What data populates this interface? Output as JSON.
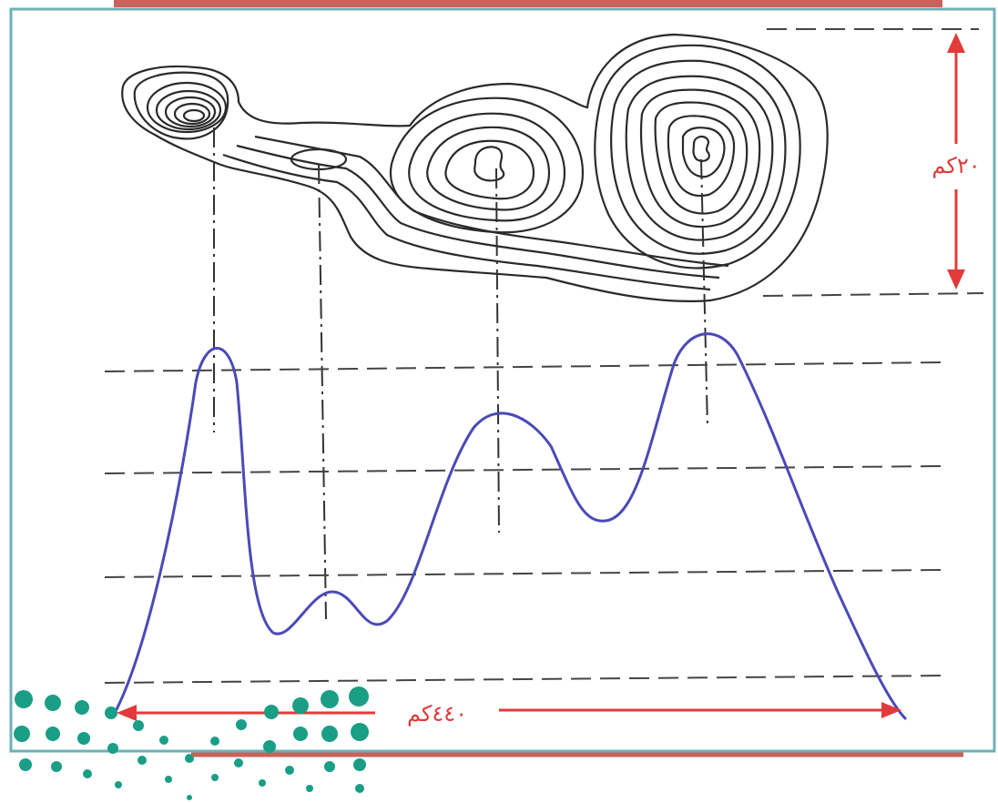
{
  "labels": {
    "height_dimension": "٢٠كم",
    "width_dimension": "٤٤٠كم"
  },
  "colors": {
    "frame": "#6fb0b5",
    "top_bar": "#c9625c",
    "profile_curve": "#4a4ab8",
    "dimension": "#e23a3a",
    "contour": "#2a2a2a",
    "guide": "#333333",
    "dots": "#1a9e86"
  }
}
